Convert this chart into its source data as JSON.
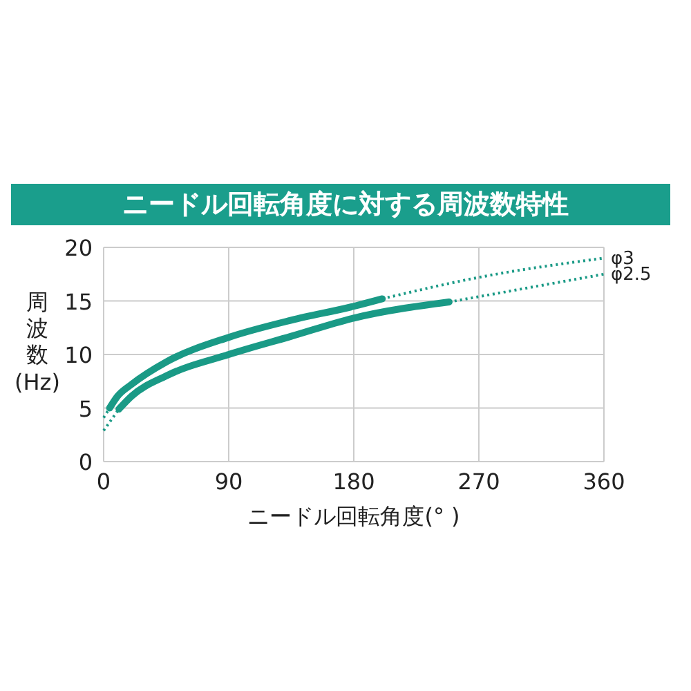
{
  "chart_data": {
    "type": "line",
    "title": "ニードル回転角度に対する周波数特性",
    "xlabel": "ニードル回転角度(°  )",
    "ylabel": "周波数(Hz)",
    "xlim": [
      0,
      360
    ],
    "ylim": [
      0,
      20
    ],
    "xticks": [
      0,
      90,
      180,
      270,
      360
    ],
    "yticks": [
      0,
      5,
      10,
      15,
      20
    ],
    "grid": true,
    "marker": "none",
    "series": [
      {
        "color": "#1a9a86",
        "line_style": "solid",
        "x": [
          4.3,
          10,
          20,
          45,
          90,
          135,
          180,
          200.5
        ],
        "values": [
          5.0,
          6.1,
          7.2,
          9.3,
          11.6,
          13.2,
          14.5,
          15.2
        ]
      },
      {
        "color": "#1a9a86",
        "line_style": "solid",
        "x": [
          11,
          20,
          45,
          90,
          135,
          180,
          248.6
        ],
        "values": [
          4.9,
          6.1,
          8.0,
          10.0,
          11.7,
          13.4,
          14.9
        ]
      },
      {
        "name": "φ3",
        "color": "#1a9a86",
        "line_style": "dotted",
        "x": [
          0,
          4.3,
          100,
          200.5,
          270,
          360
        ],
        "values": [
          4.1,
          5.0,
          null,
          15.2,
          17.2,
          19.0
        ]
      },
      {
        "name": "φ2.5",
        "color": "#1a9a86",
        "line_style": "dotted",
        "x": [
          0,
          11,
          100,
          248.6,
          270,
          360
        ],
        "values": [
          2.9,
          4.9,
          null,
          14.9,
          15.4,
          17.5
        ]
      }
    ]
  }
}
